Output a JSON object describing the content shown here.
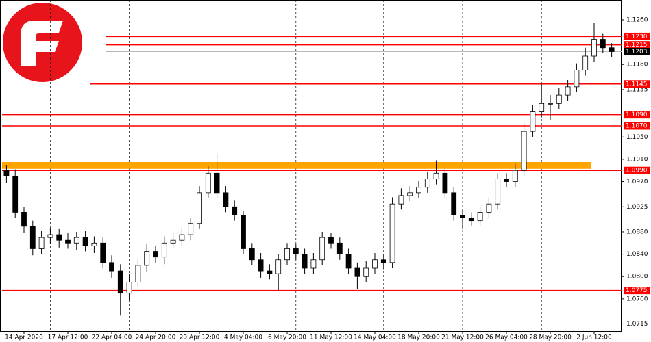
{
  "chart_data": {
    "type": "candlestick",
    "ylim": [
      1.0701,
      1.12955
    ],
    "yticks": [
      {
        "value": 1.126,
        "label": "1.1260"
      },
      {
        "value": 1.118,
        "label": "1.1180"
      },
      {
        "value": 1.1135,
        "label": "1.1135"
      },
      {
        "value": 1.105,
        "label": "1.1050"
      },
      {
        "value": 1.101,
        "label": "1.1010"
      },
      {
        "value": 1.097,
        "label": "1.0970"
      },
      {
        "value": 1.0925,
        "label": "1.0925"
      },
      {
        "value": 1.088,
        "label": "1.0880"
      },
      {
        "value": 1.084,
        "label": "1.0840"
      },
      {
        "value": 1.08,
        "label": "1.0800"
      },
      {
        "value": 1.076,
        "label": "1.0760"
      },
      {
        "value": 1.0715,
        "label": "1.0715"
      }
    ],
    "categories": [
      null,
      null,
      "14 Apr 2020",
      null,
      null,
      null,
      null,
      "17 Apr 12:00",
      null,
      null,
      null,
      null,
      "22 Apr 04:00",
      null,
      null,
      null,
      null,
      "24 Apr 20:00",
      null,
      null,
      null,
      null,
      "29 Apr 12:00",
      null,
      null,
      null,
      null,
      "4 May 04:00",
      null,
      null,
      null,
      null,
      "6 May 20:00",
      null,
      null,
      null,
      null,
      "11 May 12:00",
      null,
      null,
      null,
      null,
      "14 May 04:00",
      null,
      null,
      null,
      null,
      "18 May 20:00",
      null,
      null,
      null,
      null,
      "21 May 12:00",
      null,
      null,
      null,
      null,
      "26 May 04:00",
      null,
      null,
      null,
      null,
      "28 May 20:00",
      null,
      null,
      null,
      null,
      "2 Jun 12:00",
      null,
      null
    ],
    "open": [
      1.099,
      1.098,
      1.0915,
      1.089,
      1.085,
      1.087,
      1.0875,
      1.0865,
      1.086,
      1.087,
      1.0855,
      1.086,
      1.0825,
      1.081,
      1.077,
      1.079,
      1.082,
      1.0845,
      1.0835,
      1.086,
      1.0865,
      1.0875,
      1.0895,
      1.095,
      1.0985,
      1.095,
      1.0925,
      1.091,
      1.085,
      1.083,
      1.081,
      1.0805,
      1.083,
      1.085,
      1.084,
      1.0815,
      1.083,
      1.087,
      1.086,
      1.084,
      1.0815,
      1.08,
      1.0815,
      1.083,
      1.0825,
      1.093,
      1.0945,
      1.095,
      1.096,
      1.0975,
      1.0985,
      1.095,
      1.091,
      1.0905,
      1.09,
      1.0915,
      1.093,
      1.0975,
      1.097,
      1.099,
      1.106,
      1.1095,
      1.111,
      1.111,
      1.1125,
      1.114,
      1.117,
      1.1195,
      1.1225,
      1.121
    ],
    "high": [
      1.1,
      1.0992,
      1.0925,
      1.09,
      1.0882,
      1.0886,
      1.0885,
      1.0878,
      1.088,
      1.0882,
      1.0872,
      1.087,
      1.0838,
      1.0822,
      1.0805,
      1.0832,
      1.0858,
      1.0855,
      1.0872,
      1.0878,
      1.0886,
      1.0905,
      1.0962,
      1.0998,
      1.102,
      1.0962,
      1.0936,
      1.0918,
      1.086,
      1.0842,
      1.0822,
      1.084,
      1.086,
      1.0858,
      1.085,
      1.0842,
      1.088,
      1.0878,
      1.087,
      1.085,
      1.0825,
      1.0828,
      1.0842,
      1.084,
      1.0942,
      1.0958,
      1.0962,
      1.0972,
      1.0988,
      1.1008,
      1.0995,
      1.096,
      1.092,
      1.0915,
      1.0925,
      1.0942,
      1.0985,
      1.0985,
      1.1002,
      1.1075,
      1.1108,
      1.1148,
      1.1125,
      1.1138,
      1.1152,
      1.1182,
      1.121,
      1.1255,
      1.1236,
      1.1218
    ],
    "low": [
      1.0968,
      1.0905,
      1.0878,
      1.0838,
      1.084,
      1.0858,
      1.0852,
      1.085,
      1.0848,
      1.0845,
      1.0842,
      1.0815,
      1.0798,
      1.073,
      1.0758,
      1.078,
      1.0808,
      1.0825,
      1.0822,
      1.085,
      1.0855,
      1.0865,
      1.0885,
      1.094,
      1.094,
      1.0915,
      1.09,
      1.084,
      1.082,
      1.0798,
      1.0795,
      1.0775,
      1.082,
      1.083,
      1.0805,
      1.0805,
      1.082,
      1.085,
      1.083,
      1.0805,
      1.0778,
      1.079,
      1.0805,
      1.0812,
      1.0815,
      1.092,
      1.0935,
      1.094,
      1.095,
      1.0965,
      1.094,
      1.09,
      1.0885,
      1.089,
      1.0892,
      1.0905,
      1.092,
      1.096,
      1.096,
      1.098,
      1.105,
      1.1085,
      1.108,
      1.11,
      1.1115,
      1.113,
      1.116,
      1.1185,
      1.12,
      1.1193
    ],
    "close": [
      1.098,
      1.0915,
      1.089,
      1.085,
      1.087,
      1.0875,
      1.0865,
      1.086,
      1.087,
      1.0855,
      1.086,
      1.0825,
      1.081,
      1.077,
      1.079,
      1.082,
      1.0845,
      1.0835,
      1.086,
      1.0865,
      1.0875,
      1.0895,
      1.095,
      1.0985,
      1.095,
      1.0925,
      1.091,
      1.085,
      1.083,
      1.081,
      1.0805,
      1.083,
      1.085,
      1.084,
      1.0815,
      1.083,
      1.087,
      1.086,
      1.084,
      1.0815,
      1.08,
      1.0815,
      1.083,
      1.0825,
      1.093,
      1.0945,
      1.095,
      1.096,
      1.0975,
      1.0985,
      1.095,
      1.091,
      1.0905,
      1.09,
      1.0915,
      1.093,
      1.0975,
      1.097,
      1.099,
      1.106,
      1.1095,
      1.111,
      1.111,
      1.1125,
      1.114,
      1.117,
      1.1195,
      1.1225,
      1.121,
      1.1203
    ],
    "levels": [
      {
        "value": 1.123,
        "label": "1.1230"
      },
      {
        "value": 1.1215,
        "label": "1.1215"
      },
      {
        "value": 1.1145,
        "label": "1.1145"
      },
      {
        "value": 1.109,
        "label": "1.1090"
      },
      {
        "value": 1.107,
        "label": "1.1070"
      },
      {
        "value": 1.099,
        "label": "1.0990"
      },
      {
        "value": 1.0775,
        "label": "1.0775"
      }
    ],
    "level_color": "#ff0000",
    "zone": [
      1.0993,
      1.1005
    ],
    "zone_color": "#ffa500",
    "current_price": {
      "value": 1.1203,
      "label": "1.1203"
    }
  }
}
